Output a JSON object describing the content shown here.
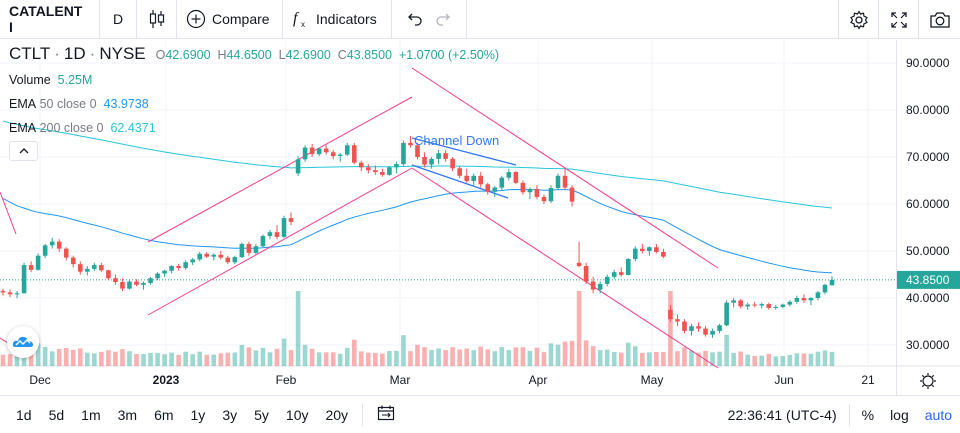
{
  "toolbar": {
    "symbol": "CATALENT I",
    "interval": "D",
    "compare_label": "Compare",
    "indicators_label": "Indicators"
  },
  "legend": {
    "ticker": "CTLT",
    "interval": "1D",
    "exchange": "NYSE",
    "o_label": "O",
    "o_value": "42.6900",
    "h_label": "H",
    "h_value": "44.6500",
    "l_label": "L",
    "l_value": "42.6900",
    "c_label": "C",
    "c_value": "43.8500",
    "change": "+1.0700 (+2.50%)",
    "volume_label": "Volume",
    "volume_value": "5.25M",
    "ema50_label": "EMA",
    "ema50_params": "50 close 0",
    "ema50_value": "43.9738",
    "ema200_label": "EMA",
    "ema200_params": "200 close 0",
    "ema200_value": "62.4371"
  },
  "annotation": {
    "channel_down": "Channel Down"
  },
  "price_axis": {
    "labels": [
      "90.0000",
      "80.0000",
      "70.0000",
      "60.0000",
      "50.0000",
      "40.0000",
      "30.0000"
    ],
    "current_price": "43.8500"
  },
  "time_axis": {
    "labels": [
      "Dec",
      "2023",
      "Feb",
      "Mar",
      "Apr",
      "May",
      "Jun",
      "21"
    ]
  },
  "bottom": {
    "ranges": [
      "1d",
      "5d",
      "1m",
      "3m",
      "6m",
      "1y",
      "3y",
      "5y",
      "10y",
      "20y"
    ],
    "clock": "22:36:41 (UTC-4)",
    "percent": "%",
    "log": "log",
    "auto": "auto"
  },
  "colors": {
    "up": "#26a69a",
    "down": "#ef5350",
    "ema50": "#2196f3",
    "ema200": "#26c6da",
    "channel": "#f23c8c",
    "accent": "#2962ff",
    "auto": "#2962ff"
  },
  "chart_data": {
    "type": "candlestick",
    "symbol": "CTLT",
    "ylim": [
      25,
      95
    ],
    "yticks": [
      30,
      40,
      50,
      60,
      70,
      80,
      90
    ],
    "last_close": 43.85,
    "candles": [
      [
        41.5,
        42.0,
        40.5,
        41.2
      ],
      [
        41.2,
        41.8,
        40.2,
        40.8
      ],
      [
        40.8,
        41.5,
        40.0,
        41.0
      ],
      [
        41.0,
        47.5,
        41.0,
        47.0
      ],
      [
        47.0,
        47.8,
        45.5,
        46.0
      ],
      [
        46.0,
        49.5,
        45.8,
        49.0
      ],
      [
        49.0,
        51.5,
        48.5,
        51.2
      ],
      [
        51.2,
        52.8,
        50.5,
        52.0
      ],
      [
        52.0,
        52.5,
        49.8,
        50.5
      ],
      [
        50.5,
        50.8,
        48.0,
        48.6
      ],
      [
        48.6,
        49.0,
        46.5,
        47.2
      ],
      [
        47.2,
        47.8,
        45.0,
        45.6
      ],
      [
        45.6,
        46.8,
        44.8,
        46.2
      ],
      [
        46.2,
        47.5,
        45.8,
        47.0
      ],
      [
        47.0,
        47.5,
        45.5,
        45.9
      ],
      [
        45.9,
        46.0,
        43.8,
        44.2
      ],
      [
        44.2,
        45.0,
        42.8,
        43.4
      ],
      [
        43.4,
        44.2,
        41.5,
        42.0
      ],
      [
        42.0,
        43.8,
        41.8,
        43.5
      ],
      [
        43.5,
        44.0,
        42.5,
        42.8
      ],
      [
        42.8,
        43.5,
        41.8,
        43.2
      ],
      [
        43.2,
        44.5,
        42.8,
        44.2
      ],
      [
        44.2,
        45.5,
        43.8,
        45.2
      ],
      [
        45.2,
        46.0,
        44.5,
        45.8
      ],
      [
        45.8,
        47.0,
        45.2,
        46.8
      ],
      [
        46.8,
        47.2,
        45.8,
        46.4
      ],
      [
        46.4,
        48.0,
        46.0,
        47.6
      ],
      [
        47.6,
        48.5,
        47.0,
        48.2
      ],
      [
        48.2,
        49.8,
        47.8,
        49.4
      ],
      [
        49.4,
        49.8,
        48.5,
        48.8
      ],
      [
        48.8,
        49.5,
        48.0,
        49.2
      ],
      [
        49.2,
        50.0,
        48.2,
        48.6
      ],
      [
        48.6,
        49.0,
        47.2,
        47.6
      ],
      [
        47.6,
        49.0,
        47.2,
        48.7
      ],
      [
        48.7,
        51.8,
        48.5,
        51.5
      ],
      [
        51.5,
        52.0,
        49.0,
        49.6
      ],
      [
        49.6,
        51.5,
        49.2,
        51.0
      ],
      [
        51.0,
        53.5,
        50.8,
        53.2
      ],
      [
        53.2,
        54.5,
        52.5,
        54.0
      ],
      [
        54.0,
        55.5,
        52.5,
        53.0
      ],
      [
        53.0,
        57.5,
        52.8,
        57.0
      ],
      [
        57.0,
        58.2,
        55.5,
        56.2
      ],
      [
        66.5,
        70.2,
        66.0,
        69.5
      ],
      [
        69.5,
        72.5,
        69.0,
        72.0
      ],
      [
        72.0,
        72.8,
        70.0,
        70.6
      ],
      [
        70.6,
        72.0,
        70.2,
        71.8
      ],
      [
        71.8,
        72.5,
        70.5,
        71.0
      ],
      [
        71.0,
        71.5,
        69.5,
        70.2
      ],
      [
        70.2,
        70.8,
        69.0,
        70.5
      ],
      [
        70.5,
        73.0,
        70.2,
        72.5
      ],
      [
        72.5,
        73.0,
        68.5,
        68.8
      ],
      [
        68.8,
        69.2,
        67.0,
        67.8
      ],
      [
        67.8,
        68.5,
        66.5,
        67.2
      ],
      [
        67.2,
        68.2,
        66.2,
        66.8
      ],
      [
        66.8,
        67.5,
        65.8,
        66.2
      ],
      [
        66.2,
        68.0,
        66.0,
        67.8
      ],
      [
        67.8,
        69.0,
        66.5,
        68.5
      ],
      [
        68.5,
        73.5,
        68.0,
        73.0
      ],
      [
        73.0,
        74.5,
        72.0,
        72.5
      ],
      [
        72.5,
        73.0,
        69.5,
        70.0
      ],
      [
        70.0,
        71.0,
        67.8,
        68.4
      ],
      [
        68.4,
        70.0,
        67.5,
        69.6
      ],
      [
        69.6,
        71.5,
        68.5,
        70.8
      ],
      [
        70.8,
        71.5,
        69.0,
        69.6
      ],
      [
        69.6,
        70.0,
        67.0,
        67.6
      ],
      [
        67.6,
        68.0,
        65.5,
        66.0
      ],
      [
        66.0,
        67.5,
        64.5,
        64.9
      ],
      [
        64.9,
        66.5,
        64.0,
        66.0
      ],
      [
        66.0,
        66.8,
        63.5,
        64.2
      ],
      [
        64.2,
        64.5,
        62.0,
        62.6
      ],
      [
        62.6,
        63.8,
        61.5,
        63.5
      ],
      [
        63.5,
        66.0,
        63.0,
        65.6
      ],
      [
        65.6,
        67.5,
        65.0,
        66.8
      ],
      [
        66.8,
        67.0,
        64.2,
        64.5
      ],
      [
        64.5,
        65.0,
        62.0,
        62.5
      ],
      [
        62.5,
        63.5,
        61.0,
        63.2
      ],
      [
        63.2,
        64.0,
        61.0,
        61.5
      ],
      [
        61.5,
        62.0,
        60.0,
        60.6
      ],
      [
        60.6,
        64.0,
        60.2,
        63.4
      ],
      [
        63.4,
        66.5,
        63.0,
        66.0
      ],
      [
        66.0,
        67.5,
        63.0,
        63.5
      ],
      [
        63.5,
        64.0,
        59.5,
        60.5
      ],
      [
        47.5,
        52.0,
        46.5,
        46.8
      ],
      [
        46.8,
        47.5,
        43.0,
        43.5
      ],
      [
        43.5,
        44.5,
        41.0,
        41.8
      ],
      [
        41.8,
        43.5,
        41.0,
        43.0
      ],
      [
        43.0,
        45.0,
        42.5,
        44.5
      ],
      [
        44.5,
        46.0,
        44.0,
        45.5
      ],
      [
        45.5,
        46.5,
        44.5,
        44.9
      ],
      [
        44.9,
        48.5,
        44.8,
        48.3
      ],
      [
        48.3,
        51.0,
        47.8,
        50.5
      ],
      [
        50.5,
        51.5,
        49.5,
        50.0
      ],
      [
        50.0,
        51.0,
        49.0,
        50.8
      ],
      [
        50.8,
        51.5,
        49.5,
        49.8
      ],
      [
        49.8,
        50.5,
        48.5,
        48.8
      ],
      [
        37.5,
        38.5,
        35.0,
        35.5
      ],
      [
        35.5,
        36.5,
        34.0,
        35.0
      ],
      [
        35.0,
        35.5,
        32.5,
        33.0
      ],
      [
        33.0,
        34.5,
        32.0,
        34.0
      ],
      [
        34.0,
        34.8,
        32.8,
        33.5
      ],
      [
        33.5,
        34.0,
        31.8,
        32.2
      ],
      [
        32.2,
        33.5,
        31.5,
        33.0
      ],
      [
        33.0,
        34.5,
        32.5,
        34.2
      ],
      [
        34.2,
        39.5,
        34.0,
        39.0
      ],
      [
        39.0,
        40.0,
        38.0,
        39.5
      ],
      [
        39.5,
        39.8,
        37.8,
        38.2
      ],
      [
        38.2,
        39.0,
        37.5,
        38.6
      ],
      [
        38.6,
        39.2,
        38.0,
        38.4
      ],
      [
        38.4,
        39.0,
        37.8,
        38.7
      ],
      [
        38.7,
        39.0,
        37.5,
        37.9
      ],
      [
        37.9,
        38.5,
        37.5,
        38.1
      ],
      [
        38.1,
        38.8,
        37.8,
        38.6
      ],
      [
        38.6,
        39.5,
        38.2,
        39.2
      ],
      [
        39.2,
        40.5,
        38.8,
        40.0
      ],
      [
        40.0,
        40.8,
        39.0,
        39.5
      ],
      [
        39.5,
        40.2,
        38.5,
        40.0
      ],
      [
        40.0,
        41.5,
        39.5,
        41.2
      ],
      [
        41.2,
        43.0,
        40.8,
        42.8
      ],
      [
        42.69,
        44.65,
        42.69,
        43.85
      ]
    ],
    "volume_scale": [
      0,
      1
    ]
  }
}
